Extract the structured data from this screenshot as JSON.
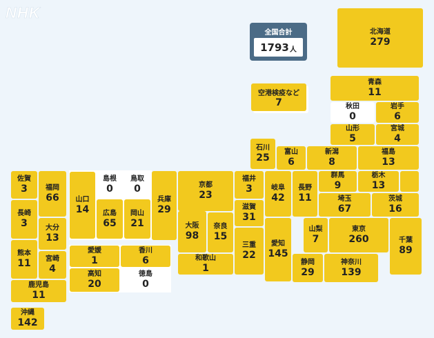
{
  "logo": {
    "text": "NHK"
  },
  "total": {
    "label": "全国合計",
    "value": "1793",
    "unit": "人"
  },
  "airport": {
    "name": "空港検疫など",
    "count": "7"
  },
  "prefectures": {
    "hokkaido": {
      "name": "北海道",
      "count": "279"
    },
    "aomori": {
      "name": "青森",
      "count": "11"
    },
    "akita": {
      "name": "秋田",
      "count": "0"
    },
    "iwate": {
      "name": "岩手",
      "count": "6"
    },
    "yamagata": {
      "name": "山形",
      "count": "5"
    },
    "miyagi": {
      "name": "宮城",
      "count": "4"
    },
    "ishikawa": {
      "name": "石川",
      "count": "25"
    },
    "toyama": {
      "name": "富山",
      "count": "6"
    },
    "niigata": {
      "name": "新潟",
      "count": "8"
    },
    "fukushima": {
      "name": "福島",
      "count": "13"
    },
    "gunma": {
      "name": "群馬",
      "count": "9"
    },
    "tochigi": {
      "name": "栃木",
      "count": "13"
    },
    "saitama": {
      "name": "埼玉",
      "count": "67"
    },
    "ibaraki": {
      "name": "茨城",
      "count": "16"
    },
    "nagano": {
      "name": "長野",
      "count": "11"
    },
    "gifu": {
      "name": "岐阜",
      "count": "42"
    },
    "fukui": {
      "name": "福井",
      "count": "3"
    },
    "shiga": {
      "name": "滋賀",
      "count": "31"
    },
    "kyoto": {
      "name": "京都",
      "count": "23"
    },
    "hyogo": {
      "name": "兵庫",
      "count": "29"
    },
    "osaka": {
      "name": "大阪",
      "count": "98"
    },
    "nara": {
      "name": "奈良",
      "count": "15"
    },
    "mie": {
      "name": "三重",
      "count": "22"
    },
    "aichi": {
      "name": "愛知",
      "count": "145"
    },
    "yamanashi": {
      "name": "山梨",
      "count": "7"
    },
    "tokyo": {
      "name": "東京",
      "count": "260"
    },
    "chiba": {
      "name": "千葉",
      "count": "89"
    },
    "shizuoka": {
      "name": "静岡",
      "count": "29"
    },
    "kanagawa": {
      "name": "神奈川",
      "count": "139"
    },
    "wakayama": {
      "name": "和歌山",
      "count": "1"
    },
    "shimane": {
      "name": "島根",
      "count": "0"
    },
    "tottori": {
      "name": "鳥取",
      "count": "0"
    },
    "yamaguchi": {
      "name": "山口",
      "count": "14"
    },
    "hiroshima": {
      "name": "広島",
      "count": "65"
    },
    "okayama": {
      "name": "岡山",
      "count": "21"
    },
    "ehime": {
      "name": "愛媛",
      "count": "1"
    },
    "kagawa": {
      "name": "香川",
      "count": "6"
    },
    "kochi": {
      "name": "高知",
      "count": "20"
    },
    "tokushima": {
      "name": "徳島",
      "count": "0"
    },
    "saga": {
      "name": "佐賀",
      "count": "3"
    },
    "fukuoka": {
      "name": "福岡",
      "count": "66"
    },
    "nagasaki": {
      "name": "長崎",
      "count": "3"
    },
    "oita": {
      "name": "大分",
      "count": "13"
    },
    "kumamoto": {
      "name": "熊本",
      "count": "11"
    },
    "miyazaki": {
      "name": "宮崎",
      "count": "4"
    },
    "kagoshima": {
      "name": "鹿児島",
      "count": "11"
    },
    "okinawa": {
      "name": "沖縄",
      "count": "142"
    }
  },
  "colors": {
    "infected": "#f2c91e",
    "none": "#ffffff",
    "total_bg": "#4b6b86",
    "background": "#eef5fb"
  }
}
